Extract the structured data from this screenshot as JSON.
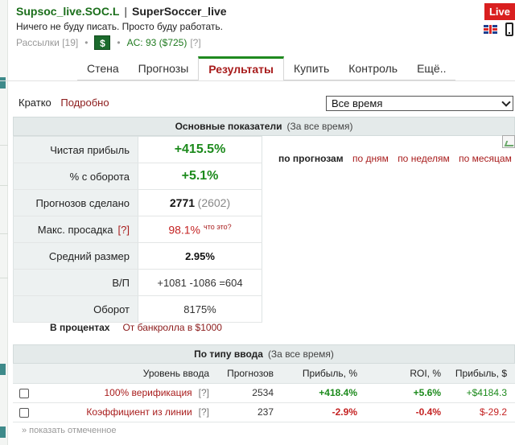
{
  "header": {
    "nick": "Supsoc_live.SOC.L",
    "separator": "|",
    "name": "SuperSoccer_live",
    "motto": "Ничего не буду писать. Просто буду работать.",
    "mailings": "Рассылки [19]",
    "dollar_label": "$",
    "ac": "AC: 93 ($725)",
    "ac_help": "[?]",
    "live_badge": "Live"
  },
  "tabs": [
    {
      "label": "Стена",
      "active": false
    },
    {
      "label": "Прогнозы",
      "active": false
    },
    {
      "label": "Результаты",
      "active": true
    },
    {
      "label": "Купить",
      "active": false
    },
    {
      "label": "Контроль",
      "active": false
    },
    {
      "label": "Ещё..",
      "active": false
    }
  ],
  "view_modes": {
    "brief": "Кратко",
    "detailed": "Подробно"
  },
  "period_select": {
    "value": "Все время"
  },
  "main_stats": {
    "title": "Основные показатели",
    "subtitle": "(За все время)",
    "rows": {
      "net_profit": {
        "label": "Чистая прибыль",
        "value": "+415.5%"
      },
      "turnover_pct": {
        "label": "% с оборота",
        "value": "+5.1%"
      },
      "tips_made": {
        "label": "Прогнозов сделано",
        "value": "2771",
        "extra": "(2602)"
      },
      "max_drawdown": {
        "label": "Макс. просадка",
        "help": "[?]",
        "value": "98.1%",
        "what": "что это?"
      },
      "avg_size": {
        "label": "Средний размер",
        "value": "2.95%"
      },
      "wl": {
        "label": "В/П",
        "value": "+1081 -1086 =604"
      },
      "turnover": {
        "label": "Оборот",
        "value": "8175%"
      }
    },
    "in_percent_label": "В процентах",
    "in_percent_value": "От банкролла в $1000"
  },
  "chart_links": {
    "lead": "по прогнозам",
    "links": [
      "по дням",
      "по неделям",
      "по месяцам"
    ]
  },
  "input_type": {
    "title": "По типу ввода",
    "subtitle": "(За все время)",
    "columns": [
      "Уровень ввода",
      "Прогнозов",
      "Прибыль, %",
      "ROI, %",
      "Прибыль, $"
    ],
    "rows": [
      {
        "level": "100% верификация",
        "help": "[?]",
        "tips": "2534",
        "profit_pct": "+418.4%",
        "roi": "+5.6%",
        "profit_usd": "+$4184.3"
      },
      {
        "level": "Коэффициент из линии",
        "help": "[?]",
        "tips": "237",
        "profit_pct": "-2.9%",
        "roi": "-0.4%",
        "profit_usd": "$-29.2"
      }
    ],
    "show_marked": "» показать отмеченное"
  }
}
